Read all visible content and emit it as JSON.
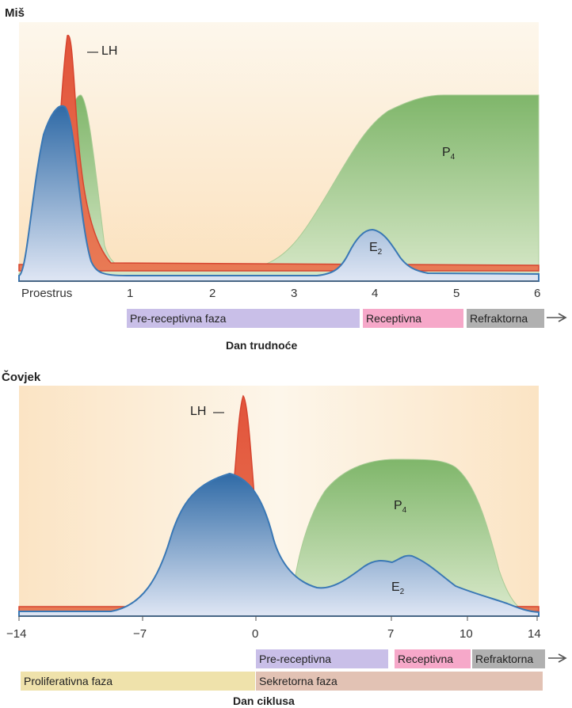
{
  "colors": {
    "background_top": "#fdf6e8",
    "background_bottom": "#fbe3c0",
    "lh": "#e2533b",
    "estradiol": "#3a78b5",
    "progesterone": "#7fb66a",
    "phase_purple": "#c9bfe8",
    "phase_pink": "#f6a8c9",
    "phase_gray": "#b0b0b0",
    "phase_yellow": "#efe2ab",
    "phase_tan": "#e2c2b4"
  },
  "mouse": {
    "title": "Miš",
    "lh_label": "LH",
    "p4_label": "P",
    "p4_sub": "4",
    "e2_label": "E",
    "e2_sub": "2",
    "ticks": [
      "Proestrus",
      "1",
      "2",
      "3",
      "4",
      "5",
      "6"
    ],
    "phases": [
      "Pre-receptivna faza",
      "Receptivna",
      "Refraktorna"
    ],
    "xlabel": "Dan trudnoće"
  },
  "human": {
    "title": "Čovjek",
    "lh_label": "LH",
    "p4_label": "P",
    "p4_sub": "4",
    "e2_label": "E",
    "e2_sub": "2",
    "ticks": [
      "−14",
      "−7",
      "0",
      "7",
      "10",
      "14"
    ],
    "phases_top": [
      "Pre-receptivna",
      "Receptivna",
      "Refraktorna"
    ],
    "phases_bottom": [
      "Proliferativna faza",
      "Sekretorna faza"
    ],
    "xlabel": "Dan ciklusa"
  }
}
